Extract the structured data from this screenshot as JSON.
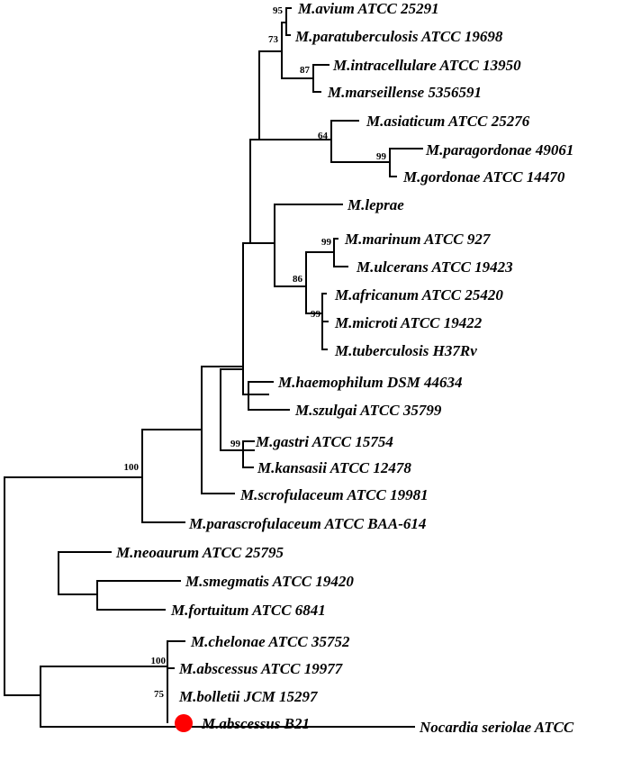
{
  "taxa": [
    "M.avium ATCC 25291",
    "M.paratuberculosis ATCC 19698",
    "M.intracellulare ATCC 13950",
    "M.marseillense 5356591",
    "M.asiaticum ATCC 25276",
    "M.paragordonae 49061",
    "M.gordonae ATCC 14470",
    "M.leprae",
    "M.marinum ATCC 927",
    "M.ulcerans ATCC 19423",
    "M.africanum ATCC 25420",
    "M.microti ATCC 19422",
    "M.tuberculosis H37Rv",
    "M.haemophilum DSM 44634",
    "M.szulgai ATCC 35799",
    "M.gastri ATCC 15754",
    "M.kansasii ATCC 12478",
    "M.scrofulaceum ATCC 19981",
    "M.parascrofulaceum ATCC BAA-614",
    "M.neoaurum ATCC 25795",
    "M.smegmatis ATCC 19420",
    "M.fortuitum ATCC 6841",
    "M.chelonae ATCC 35752",
    "M.abscessus ATCC 19977",
    "M.bolletii JCM 15297",
    "M.abscessus B21",
    "Nocardia seriolae ATCC"
  ],
  "bootstrap": [
    "95",
    "73",
    "87",
    "64",
    "99",
    "99",
    "86",
    "99",
    "99",
    "100",
    "100",
    "75"
  ],
  "highlight": {
    "taxon": "M.abscessus B21",
    "marker": "red-dot",
    "color": "#ff0000"
  }
}
